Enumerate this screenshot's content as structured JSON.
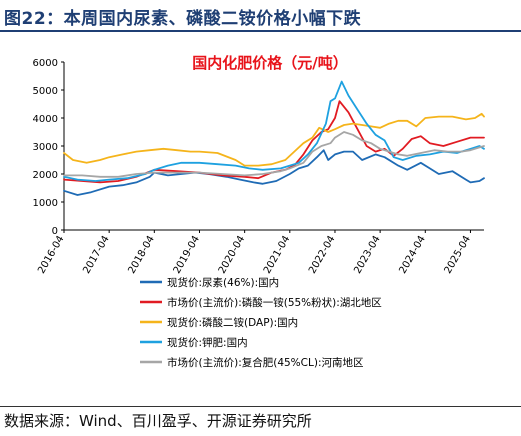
{
  "figure": {
    "title": "图22：本周国内尿素、磷酸二铵价格小幅下跌",
    "source": "数据来源：Wind、百川盈孚、开源证券研究所"
  },
  "chart_data": {
    "type": "line",
    "title": "国内化肥价格（元/吨）",
    "title_color": "#e8141b",
    "xlabel": "",
    "ylabel": "",
    "ylim": [
      0,
      6000
    ],
    "yticks": [
      0,
      1000,
      2000,
      3000,
      4000,
      5000,
      6000
    ],
    "x_ticks": [
      "2016-04",
      "2017-04",
      "2018-04",
      "2019-04",
      "2020-04",
      "2021-04",
      "2022-04",
      "2023-04",
      "2024-04",
      "2025-04"
    ],
    "grid": false,
    "legend_position": "bottom",
    "series": [
      {
        "name": "现货价:尿素(46%):国内",
        "color": "#1f6bb5",
        "x": [
          2016.0,
          2016.3,
          2016.6,
          2017.0,
          2017.3,
          2017.6,
          2017.9,
          2018.0,
          2018.3,
          2018.6,
          2018.9,
          2019.2,
          2019.6,
          2019.9,
          2020.2,
          2020.4,
          2020.7,
          2021.0,
          2021.2,
          2021.4,
          2021.6,
          2021.75,
          2021.85,
          2022.0,
          2022.2,
          2022.4,
          2022.6,
          2022.9,
          2023.1,
          2023.4,
          2023.6,
          2023.9,
          2024.1,
          2024.3,
          2024.6,
          2024.9,
          2025.0,
          2025.2,
          2025.3
        ],
        "values": [
          1400,
          1250,
          1350,
          1550,
          1600,
          1700,
          1900,
          2050,
          1950,
          2000,
          2050,
          2000,
          1900,
          1800,
          1700,
          1650,
          1750,
          2000,
          2200,
          2300,
          2600,
          2850,
          2500,
          2700,
          2800,
          2800,
          2500,
          2700,
          2600,
          2300,
          2150,
          2400,
          2200,
          2000,
          2100,
          1800,
          1700,
          1750,
          1850
        ]
      },
      {
        "name": "市场价(主流价):磷酸一铵(55%粉状):湖北地区",
        "color": "#e11b22",
        "x": [
          2016.0,
          2016.4,
          2016.8,
          2017.2,
          2017.6,
          2018.0,
          2018.5,
          2019.0,
          2019.5,
          2020.0,
          2020.3,
          2020.6,
          2020.9,
          2021.1,
          2021.3,
          2021.5,
          2021.7,
          2021.85,
          2022.0,
          2022.1,
          2022.3,
          2022.5,
          2022.7,
          2022.9,
          2023.1,
          2023.3,
          2023.5,
          2023.7,
          2023.9,
          2024.1,
          2024.4,
          2024.7,
          2025.0,
          2025.2,
          2025.3
        ],
        "values": [
          1800,
          1750,
          1700,
          1750,
          1900,
          2150,
          2100,
          2050,
          1950,
          1900,
          1850,
          2050,
          2150,
          2300,
          2700,
          3200,
          3500,
          3600,
          4000,
          4600,
          4200,
          3600,
          3000,
          2800,
          2900,
          2650,
          2900,
          3250,
          3350,
          3100,
          3000,
          3150,
          3300,
          3300,
          3300
        ]
      },
      {
        "name": "现货价:磷酸二铵(DAP):国内",
        "color": "#f5b41b",
        "x": [
          2016.0,
          2016.2,
          2016.5,
          2016.8,
          2017.0,
          2017.3,
          2017.6,
          2017.9,
          2018.2,
          2018.5,
          2018.8,
          2019.0,
          2019.4,
          2019.8,
          2020.0,
          2020.3,
          2020.6,
          2020.9,
          2021.1,
          2021.3,
          2021.5,
          2021.65,
          2021.85,
          2022.0,
          2022.2,
          2022.4,
          2022.6,
          2022.8,
          2023.0,
          2023.2,
          2023.4,
          2023.6,
          2023.8,
          2024.0,
          2024.3,
          2024.6,
          2024.9,
          2025.1,
          2025.25,
          2025.3
        ],
        "values": [
          2750,
          2500,
          2400,
          2500,
          2600,
          2700,
          2800,
          2850,
          2900,
          2850,
          2800,
          2800,
          2750,
          2500,
          2300,
          2300,
          2350,
          2500,
          2800,
          3100,
          3300,
          3650,
          3500,
          3600,
          3750,
          3800,
          3750,
          3700,
          3650,
          3800,
          3900,
          3900,
          3700,
          4000,
          4050,
          4050,
          3950,
          4000,
          4150,
          4050
        ]
      },
      {
        "name": "现货价:钾肥:国内",
        "color": "#1ea1e0",
        "x": [
          2016.0,
          2016.3,
          2016.7,
          2017.0,
          2017.4,
          2017.8,
          2018.0,
          2018.3,
          2018.6,
          2019.0,
          2019.4,
          2019.8,
          2020.1,
          2020.4,
          2020.8,
          2021.0,
          2021.2,
          2021.4,
          2021.6,
          2021.8,
          2021.9,
          2022.0,
          2022.15,
          2022.3,
          2022.5,
          2022.7,
          2022.9,
          2023.1,
          2023.3,
          2023.5,
          2023.8,
          2024.1,
          2024.4,
          2024.7,
          2025.0,
          2025.2,
          2025.3
        ],
        "values": [
          1900,
          1800,
          1750,
          1800,
          1850,
          2000,
          2150,
          2300,
          2400,
          2400,
          2350,
          2300,
          2200,
          2150,
          2200,
          2300,
          2400,
          2700,
          3100,
          3800,
          4600,
          4700,
          5300,
          4800,
          4300,
          3800,
          3400,
          3200,
          2600,
          2500,
          2650,
          2700,
          2800,
          2750,
          2900,
          3000,
          2900
        ]
      },
      {
        "name": "市场价(主流价):复合肥(45%CL):河南地区",
        "color": "#a6a6a6",
        "x": [
          2016.0,
          2016.4,
          2016.8,
          2017.2,
          2017.6,
          2018.0,
          2018.5,
          2019.0,
          2019.5,
          2020.0,
          2020.4,
          2020.8,
          2021.0,
          2021.3,
          2021.5,
          2021.7,
          2021.9,
          2022.0,
          2022.2,
          2022.4,
          2022.6,
          2022.8,
          2023.0,
          2023.2,
          2023.4,
          2023.6,
          2023.9,
          2024.2,
          2024.5,
          2024.8,
          2025.0,
          2025.2,
          2025.3
        ],
        "values": [
          1950,
          1950,
          1900,
          1900,
          2000,
          2050,
          2050,
          2050,
          2000,
          1950,
          2000,
          2100,
          2200,
          2400,
          2800,
          3000,
          3100,
          3300,
          3500,
          3400,
          3200,
          3100,
          2900,
          2800,
          2700,
          2650,
          2750,
          2850,
          2800,
          2800,
          2850,
          2950,
          3000
        ]
      }
    ]
  }
}
